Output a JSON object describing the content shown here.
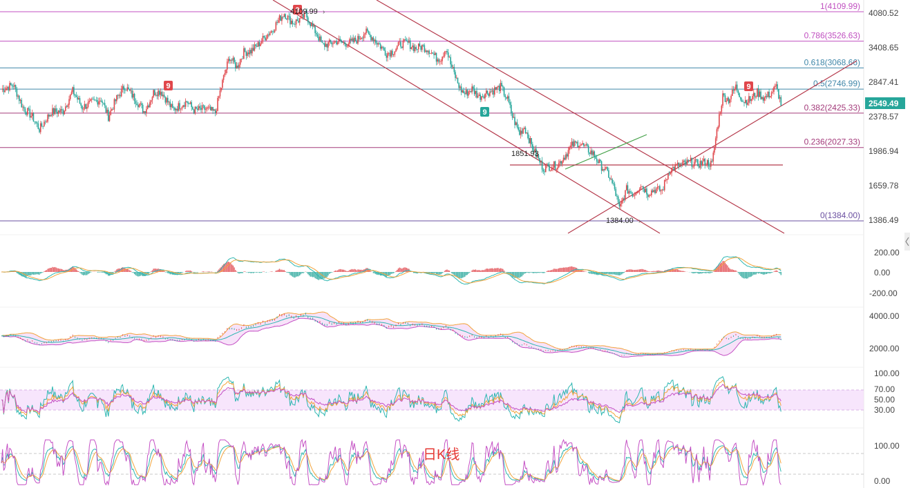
{
  "chart_data": {
    "type": "candlestick",
    "title": "日K线",
    "current_price": "2549.49",
    "price_axis_ticks": [
      "4080.52",
      "3408.65",
      "2847.41",
      "2378.57",
      "1986.94",
      "1659.78",
      "1386.49"
    ],
    "fib_levels": [
      {
        "label": "1(4109.99)",
        "value": 4109.99,
        "color": "#c04fc0"
      },
      {
        "label": "0.786(3526.63)",
        "value": 3526.63,
        "color": "#c04fc0"
      },
      {
        "label": "0.618(3068.66)",
        "value": 3068.66,
        "color": "#3f86a8"
      },
      {
        "label": "0.5(2746.99)",
        "value": 2746.99,
        "color": "#3f86a8"
      },
      {
        "label": "0.382(2425.33)",
        "value": 2425.33,
        "color": "#a33a7a"
      },
      {
        "label": "0.236(2027.33)",
        "value": 2027.33,
        "color": "#a33a7a"
      },
      {
        "label": "0(1384.00)",
        "value": 1384.0,
        "color": "#6a4fa0"
      }
    ],
    "annotations": {
      "high": "4109.99",
      "low": "1384.00",
      "support": "1851.93",
      "td_marks": [
        "9",
        "9",
        "9"
      ]
    },
    "panels": [
      {
        "name": "macd",
        "ticks": [
          "200.00",
          "0.00",
          "-200.00"
        ]
      },
      {
        "name": "bollinger",
        "ticks": [
          "4000.00",
          "2000.00"
        ]
      },
      {
        "name": "rsi",
        "ticks": [
          "100.00",
          "70.00",
          "50.00",
          "30.00"
        ]
      },
      {
        "name": "kdj",
        "ticks": [
          "100.00",
          "0.00"
        ]
      }
    ],
    "anchors": [
      [
        0,
        2740
      ],
      [
        10,
        2810
      ],
      [
        18,
        2500
      ],
      [
        26,
        2380
      ],
      [
        32,
        2230
      ],
      [
        42,
        2440
      ],
      [
        52,
        2450
      ],
      [
        60,
        2720
      ],
      [
        68,
        2500
      ],
      [
        76,
        2560
      ],
      [
        84,
        2610
      ],
      [
        90,
        2380
      ],
      [
        97,
        2620
      ],
      [
        104,
        2790
      ],
      [
        112,
        2620
      ],
      [
        120,
        2450
      ],
      [
        124,
        2550
      ],
      [
        128,
        2700
      ],
      [
        134,
        2720
      ],
      [
        144,
        2470
      ],
      [
        150,
        2520
      ],
      [
        156,
        2580
      ],
      [
        162,
        2460
      ],
      [
        172,
        2480
      ],
      [
        180,
        2430
      ],
      [
        186,
        2850
      ],
      [
        192,
        3250
      ],
      [
        198,
        3080
      ],
      [
        204,
        3330
      ],
      [
        210,
        3350
      ],
      [
        216,
        3460
      ],
      [
        222,
        3610
      ],
      [
        228,
        3740
      ],
      [
        234,
        3960
      ],
      [
        238,
        4080
      ],
      [
        242,
        3950
      ],
      [
        246,
        3880
      ],
      [
        252,
        3960
      ],
      [
        256,
        4050
      ],
      [
        262,
        3790
      ],
      [
        266,
        3640
      ],
      [
        270,
        3450
      ],
      [
        276,
        3480
      ],
      [
        282,
        3530
      ],
      [
        288,
        3490
      ],
      [
        294,
        3500
      ],
      [
        300,
        3560
      ],
      [
        306,
        3700
      ],
      [
        312,
        3600
      ],
      [
        318,
        3460
      ],
      [
        324,
        3310
      ],
      [
        330,
        3350
      ],
      [
        336,
        3480
      ],
      [
        342,
        3490
      ],
      [
        348,
        3400
      ],
      [
        354,
        3430
      ],
      [
        360,
        3370
      ],
      [
        366,
        3230
      ],
      [
        370,
        3230
      ],
      [
        374,
        3410
      ],
      [
        378,
        3130
      ],
      [
        382,
        2930
      ],
      [
        386,
        2750
      ],
      [
        390,
        2680
      ],
      [
        396,
        2750
      ],
      [
        402,
        2640
      ],
      [
        408,
        2700
      ],
      [
        414,
        2730
      ],
      [
        420,
        2780
      ],
      [
        426,
        2600
      ],
      [
        430,
        2380
      ],
      [
        436,
        2180
      ],
      [
        440,
        2260
      ],
      [
        446,
        2050
      ],
      [
        450,
        1950
      ],
      [
        456,
        1820
      ],
      [
        462,
        1840
      ],
      [
        468,
        1850
      ],
      [
        474,
        1940
      ],
      [
        480,
        2050
      ],
      [
        486,
        2080
      ],
      [
        492,
        2020
      ],
      [
        498,
        1960
      ],
      [
        504,
        1850
      ],
      [
        510,
        1780
      ],
      [
        516,
        1630
      ],
      [
        520,
        1470
      ],
      [
        526,
        1630
      ],
      [
        532,
        1590
      ],
      [
        538,
        1670
      ],
      [
        544,
        1600
      ],
      [
        550,
        1630
      ],
      [
        556,
        1620
      ],
      [
        562,
        1800
      ],
      [
        568,
        1840
      ],
      [
        574,
        1860
      ],
      [
        580,
        1880
      ],
      [
        586,
        1860
      ],
      [
        592,
        1880
      ],
      [
        598,
        1860
      ],
      [
        603,
        2300
      ],
      [
        607,
        2650
      ],
      [
        612,
        2600
      ],
      [
        618,
        2780
      ],
      [
        624,
        2580
      ],
      [
        630,
        2600
      ],
      [
        636,
        2700
      ],
      [
        642,
        2620
      ],
      [
        648,
        2700
      ],
      [
        652,
        2780
      ],
      [
        656,
        2549
      ]
    ]
  }
}
